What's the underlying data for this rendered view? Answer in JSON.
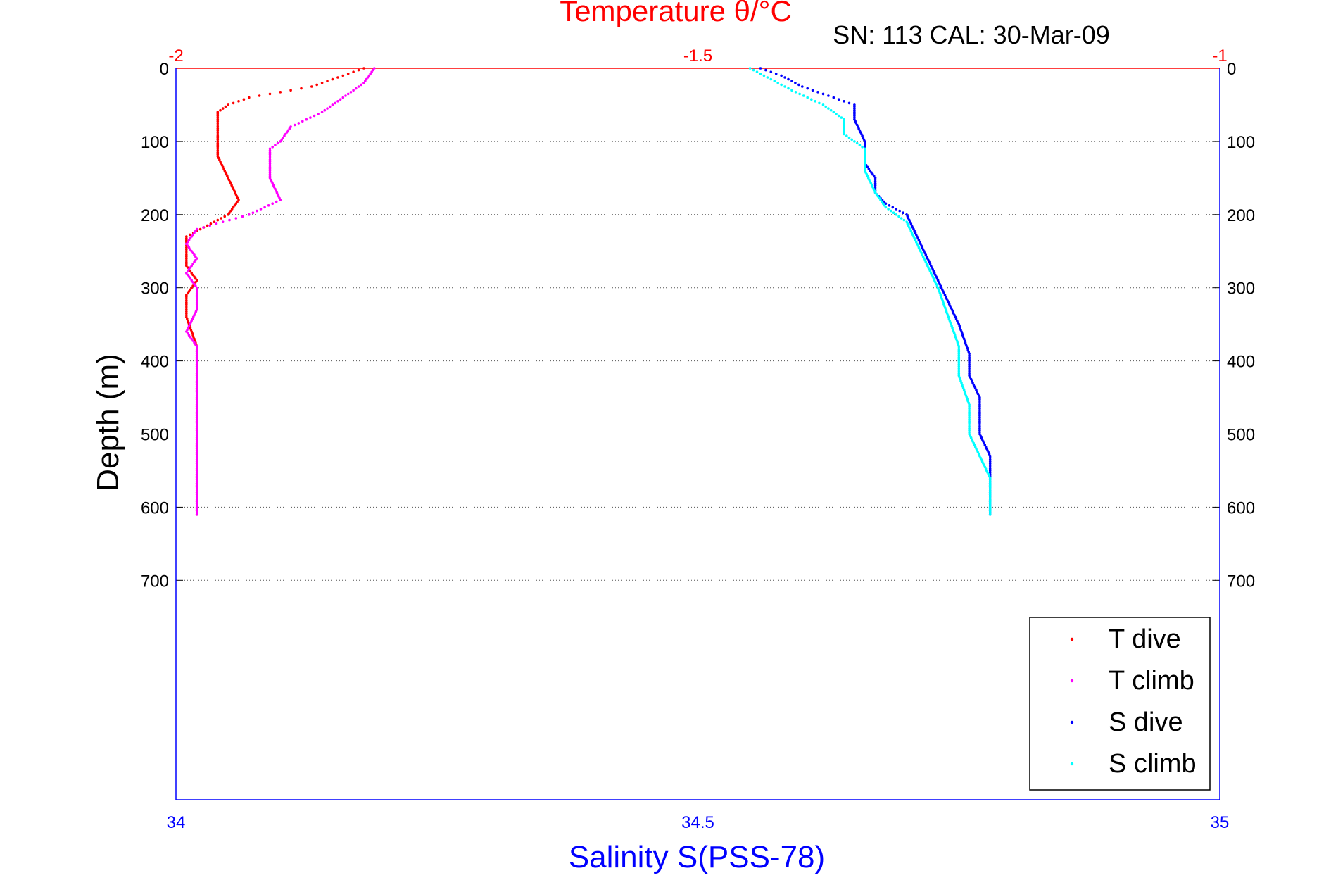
{
  "chart_data": {
    "type": "scatter",
    "title": "Temperature θ/°C",
    "subtitle": "SN: 113  CAL: 30-Mar-09",
    "ylabel": "Depth (m)",
    "xlabel": "Salinity S(PSS-78)",
    "y_axis": {
      "range": [
        0,
        1000
      ],
      "reversed": true,
      "ticks": [
        0,
        100,
        200,
        300,
        400,
        500,
        600,
        700
      ]
    },
    "temperature_axis": {
      "position": "top",
      "range": [
        -2,
        -1
      ],
      "ticks": [
        -2,
        -1.5,
        -1
      ],
      "tick_labels": [
        "-2",
        "-1.5",
        "-1"
      ],
      "color": "#ff0000"
    },
    "salinity_axis": {
      "position": "bottom",
      "range": [
        34,
        35
      ],
      "ticks": [
        34,
        34.5,
        35
      ],
      "tick_labels": [
        "34",
        "34.5",
        "35"
      ],
      "color": "#0000ff"
    },
    "grid": true,
    "legend_position": "bottom-right",
    "series": [
      {
        "name": "T dive",
        "axis": "temperature",
        "color": "#ff0000",
        "points": [
          [
            -1.82,
            0
          ],
          [
            -1.84,
            10
          ],
          [
            -1.87,
            25
          ],
          [
            -1.93,
            40
          ],
          [
            -1.95,
            50
          ],
          [
            -1.96,
            60
          ],
          [
            -1.96,
            100
          ],
          [
            -1.96,
            120
          ],
          [
            -1.95,
            150
          ],
          [
            -1.94,
            180
          ],
          [
            -1.95,
            200
          ],
          [
            -1.97,
            215
          ],
          [
            -1.99,
            230
          ],
          [
            -1.99,
            270
          ],
          [
            -1.98,
            290
          ],
          [
            -1.99,
            310
          ],
          [
            -1.99,
            340
          ],
          [
            -1.98,
            380
          ],
          [
            -1.98,
            430
          ],
          [
            -1.98,
            480
          ],
          [
            -1.98,
            530
          ],
          [
            -1.98,
            580
          ],
          [
            -1.98,
            610
          ]
        ]
      },
      {
        "name": "T climb",
        "axis": "temperature",
        "color": "#ff00ff",
        "points": [
          [
            -1.81,
            0
          ],
          [
            -1.82,
            20
          ],
          [
            -1.84,
            40
          ],
          [
            -1.86,
            60
          ],
          [
            -1.89,
            80
          ],
          [
            -1.9,
            100
          ],
          [
            -1.91,
            110
          ],
          [
            -1.91,
            150
          ],
          [
            -1.9,
            180
          ],
          [
            -1.93,
            200
          ],
          [
            -1.98,
            220
          ],
          [
            -1.99,
            240
          ],
          [
            -1.98,
            260
          ],
          [
            -1.99,
            280
          ],
          [
            -1.98,
            300
          ],
          [
            -1.98,
            330
          ],
          [
            -1.99,
            360
          ],
          [
            -1.98,
            380
          ],
          [
            -1.98,
            430
          ],
          [
            -1.98,
            480
          ],
          [
            -1.98,
            530
          ],
          [
            -1.98,
            580
          ],
          [
            -1.98,
            610
          ]
        ]
      },
      {
        "name": "S dive",
        "axis": "salinity",
        "color": "#0000ff",
        "points": [
          [
            34.56,
            0
          ],
          [
            34.58,
            10
          ],
          [
            34.6,
            25
          ],
          [
            34.63,
            40
          ],
          [
            34.65,
            50
          ],
          [
            34.65,
            70
          ],
          [
            34.66,
            100
          ],
          [
            34.66,
            130
          ],
          [
            34.67,
            150
          ],
          [
            34.67,
            170
          ],
          [
            34.68,
            185
          ],
          [
            34.7,
            200
          ],
          [
            34.71,
            230
          ],
          [
            34.72,
            260
          ],
          [
            34.73,
            290
          ],
          [
            34.74,
            320
          ],
          [
            34.75,
            350
          ],
          [
            34.76,
            390
          ],
          [
            34.76,
            420
          ],
          [
            34.77,
            450
          ],
          [
            34.77,
            480
          ],
          [
            34.77,
            500
          ],
          [
            34.78,
            530
          ],
          [
            34.78,
            560
          ],
          [
            34.78,
            590
          ],
          [
            34.78,
            610
          ]
        ]
      },
      {
        "name": "S climb",
        "axis": "salinity",
        "color": "#00ffff",
        "points": [
          [
            34.55,
            0
          ],
          [
            34.57,
            15
          ],
          [
            34.59,
            30
          ],
          [
            34.62,
            50
          ],
          [
            34.64,
            70
          ],
          [
            34.64,
            90
          ],
          [
            34.66,
            110
          ],
          [
            34.66,
            140
          ],
          [
            34.67,
            170
          ],
          [
            34.68,
            190
          ],
          [
            34.7,
            210
          ],
          [
            34.71,
            240
          ],
          [
            34.72,
            270
          ],
          [
            34.73,
            300
          ],
          [
            34.74,
            340
          ],
          [
            34.75,
            380
          ],
          [
            34.75,
            420
          ],
          [
            34.76,
            460
          ],
          [
            34.76,
            500
          ],
          [
            34.77,
            530
          ],
          [
            34.78,
            560
          ],
          [
            34.78,
            590
          ],
          [
            34.78,
            610
          ]
        ]
      }
    ]
  }
}
